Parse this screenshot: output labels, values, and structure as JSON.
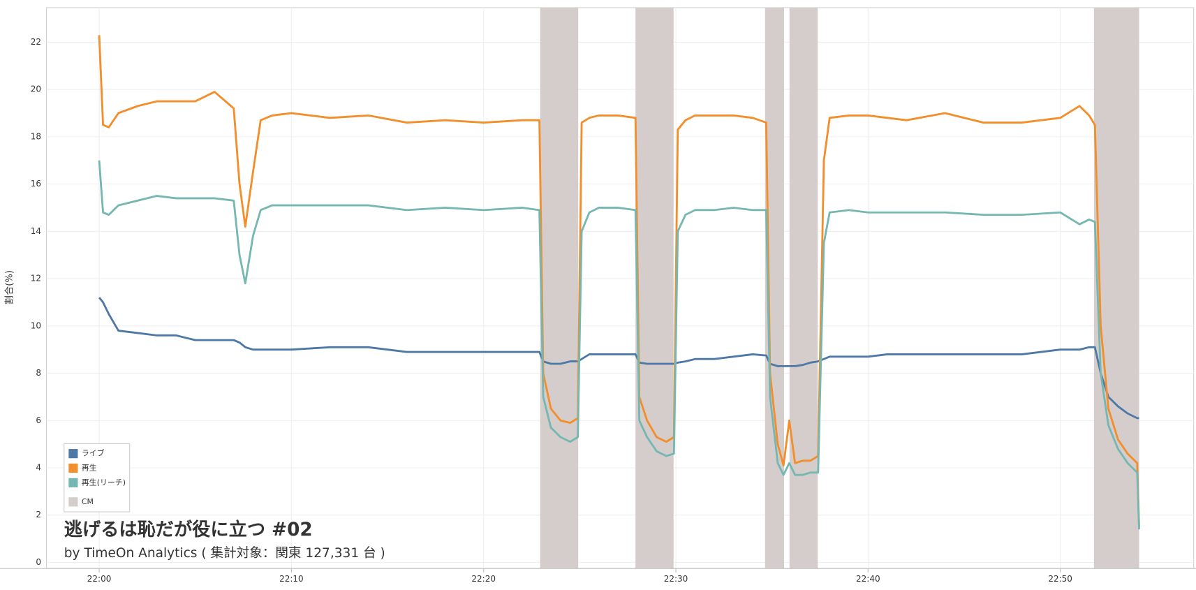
{
  "chart_data": {
    "type": "line",
    "title": "逃げるは恥だが役に立つ #02",
    "subtitle": "by TimeOn Analytics ( 集計対象：関東 127,331 台 )",
    "y_label": "割合(%)",
    "x": [
      0,
      0.2,
      0.5,
      1,
      2,
      3,
      4,
      5,
      6,
      7,
      7.3,
      7.6,
      8,
      8.4,
      9,
      10,
      12,
      14,
      16,
      18,
      20,
      22,
      22.9,
      23.1,
      23.5,
      24,
      24.5,
      24.9,
      25.1,
      25.5,
      26,
      27,
      27.9,
      28.1,
      28.5,
      29,
      29.5,
      29.9,
      30.1,
      30.5,
      31,
      32,
      33,
      34,
      34.7,
      34.9,
      35.3,
      35.6,
      35.9,
      36.2,
      36.6,
      37,
      37.4,
      37.7,
      38,
      39,
      40,
      41,
      42,
      44,
      46,
      48,
      50,
      51,
      51.5,
      51.8,
      52.1,
      52.5,
      53,
      53.5,
      54,
      54.1
    ],
    "series": [
      {
        "name": "ライブ",
        "color": "#4e79a7",
        "values": [
          11.2,
          11.0,
          10.5,
          9.8,
          9.7,
          9.6,
          9.6,
          9.4,
          9.4,
          9.4,
          9.3,
          9.1,
          9.0,
          9.0,
          9.0,
          9.0,
          9.1,
          9.1,
          8.9,
          8.9,
          8.9,
          8.9,
          8.9,
          8.5,
          8.4,
          8.4,
          8.5,
          8.5,
          8.6,
          8.8,
          8.8,
          8.8,
          8.8,
          8.45,
          8.4,
          8.4,
          8.4,
          8.4,
          8.45,
          8.5,
          8.6,
          8.6,
          8.7,
          8.8,
          8.75,
          8.4,
          8.3,
          8.3,
          8.3,
          8.3,
          8.35,
          8.45,
          8.5,
          8.6,
          8.7,
          8.7,
          8.7,
          8.8,
          8.8,
          8.8,
          8.8,
          8.8,
          9.0,
          9.0,
          9.1,
          9.1,
          8.0,
          7.0,
          6.6,
          6.3,
          6.1,
          6.1
        ]
      },
      {
        "name": "再生",
        "color": "#f28e2b",
        "values": [
          22.3,
          18.5,
          18.4,
          19.0,
          19.3,
          19.5,
          19.5,
          19.5,
          19.9,
          19.2,
          16.0,
          14.2,
          16.5,
          18.7,
          18.9,
          19.0,
          18.8,
          18.9,
          18.6,
          18.7,
          18.6,
          18.7,
          18.7,
          8.0,
          6.5,
          6.0,
          5.9,
          6.1,
          18.6,
          18.8,
          18.9,
          18.9,
          18.8,
          7.0,
          6.0,
          5.3,
          5.1,
          5.3,
          18.3,
          18.7,
          18.9,
          18.9,
          18.9,
          18.8,
          18.6,
          8.0,
          5.0,
          4.1,
          6.0,
          4.2,
          4.3,
          4.3,
          4.5,
          17.0,
          18.8,
          18.9,
          18.9,
          18.8,
          18.7,
          19.0,
          18.6,
          18.6,
          18.8,
          19.3,
          18.9,
          18.5,
          10.0,
          6.5,
          5.2,
          4.6,
          4.2,
          1.5
        ]
      },
      {
        "name": "再生(リーチ)",
        "color": "#76b7b2",
        "values": [
          17.0,
          14.8,
          14.7,
          15.1,
          15.3,
          15.5,
          15.4,
          15.4,
          15.4,
          15.3,
          13.0,
          11.8,
          13.8,
          14.9,
          15.1,
          15.1,
          15.1,
          15.1,
          14.9,
          15.0,
          14.9,
          15.0,
          14.9,
          7.0,
          5.7,
          5.3,
          5.1,
          5.3,
          14.0,
          14.8,
          15.0,
          15.0,
          14.9,
          6.0,
          5.3,
          4.7,
          4.5,
          4.6,
          14.0,
          14.7,
          14.9,
          14.9,
          15.0,
          14.9,
          14.9,
          7.0,
          4.2,
          3.7,
          4.2,
          3.7,
          3.7,
          3.8,
          3.8,
          13.5,
          14.8,
          14.9,
          14.8,
          14.8,
          14.8,
          14.8,
          14.7,
          14.7,
          14.8,
          14.3,
          14.5,
          14.4,
          8.0,
          5.8,
          4.8,
          4.2,
          3.8,
          1.4
        ]
      }
    ],
    "cm": {
      "name": "CM",
      "color": "#d4cdcc",
      "ranges": [
        [
          22.94,
          24.92
        ],
        [
          27.9,
          29.88
        ],
        [
          34.64,
          35.63
        ],
        [
          35.91,
          37.38
        ],
        [
          51.75,
          54.1
        ]
      ]
    },
    "xlim": [
      -2.74,
      56.94
    ],
    "xticks": [
      {
        "value": 0,
        "label": "22:00"
      },
      {
        "value": 10,
        "label": "22:10"
      },
      {
        "value": 20,
        "label": "22:20"
      },
      {
        "value": 30,
        "label": "22:30"
      },
      {
        "value": 40,
        "label": "22:40"
      },
      {
        "value": 50,
        "label": "22:50"
      }
    ],
    "ylim": [
      -0.26,
      23.46
    ],
    "yticks": [
      0,
      2,
      4,
      6,
      8,
      10,
      12,
      14,
      16,
      18,
      20,
      22
    ],
    "grid": true,
    "legend": "bottom-left"
  }
}
